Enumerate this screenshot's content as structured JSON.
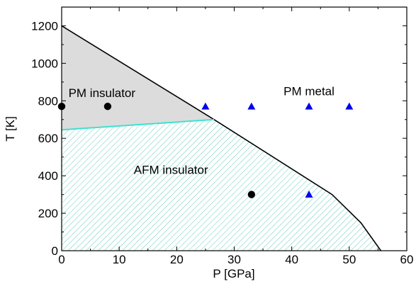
{
  "chart_data": {
    "type": "scatter",
    "title": "",
    "xlabel": "P [GPa]",
    "ylabel": "T [K]",
    "xlim": [
      0,
      60
    ],
    "ylim": [
      0,
      1300
    ],
    "xticks": [
      0,
      10,
      20,
      30,
      40,
      50,
      60
    ],
    "yticks": [
      0,
      200,
      400,
      600,
      800,
      1000,
      1200
    ],
    "xtick_labels": [
      "0",
      "10",
      "20",
      "30",
      "40",
      "50",
      "60"
    ],
    "ytick_labels": [
      "0",
      "200",
      "400",
      "600",
      "800",
      "1000",
      "1200"
    ],
    "grid": false,
    "regions": [
      {
        "label": "PM insulator",
        "label_at": [
          7,
          820
        ],
        "fill": "#dcdcdc",
        "pattern": "solid",
        "boundary": [
          [
            0,
            1200
          ],
          [
            26.5,
            700
          ],
          [
            0,
            645
          ]
        ]
      },
      {
        "label": "AFM insulator",
        "label_at": [
          19,
          410
        ],
        "fill": "#33bbaa",
        "pattern": "hatch",
        "boundary": [
          [
            0,
            645
          ],
          [
            26.5,
            700
          ],
          [
            47,
            300
          ],
          [
            52,
            150
          ],
          [
            55.5,
            0
          ],
          [
            0,
            0
          ]
        ]
      },
      {
        "label": "PM metal",
        "label_at": [
          43,
          830
        ],
        "fill": "none",
        "pattern": "none",
        "boundary": []
      }
    ],
    "boundaries": [
      {
        "name": "PM/PM-metal boundary",
        "color": "#000000",
        "points": [
          [
            0,
            1200
          ],
          [
            26.5,
            700
          ],
          [
            47,
            300
          ],
          [
            52,
            150
          ],
          [
            55.5,
            0
          ]
        ]
      },
      {
        "name": "PM/AFM boundary",
        "color": "#40e0d0",
        "points": [
          [
            0,
            645
          ],
          [
            26.5,
            700
          ]
        ]
      }
    ],
    "series": [
      {
        "marker": "circle",
        "color": "#000000",
        "points": [
          [
            0,
            770
          ],
          [
            8,
            770
          ],
          [
            33,
            300
          ]
        ]
      },
      {
        "marker": "triangle",
        "color": "#0000ee",
        "points": [
          [
            25,
            770
          ],
          [
            33,
            770
          ],
          [
            43,
            770
          ],
          [
            50,
            770
          ],
          [
            43,
            300
          ]
        ]
      }
    ]
  }
}
